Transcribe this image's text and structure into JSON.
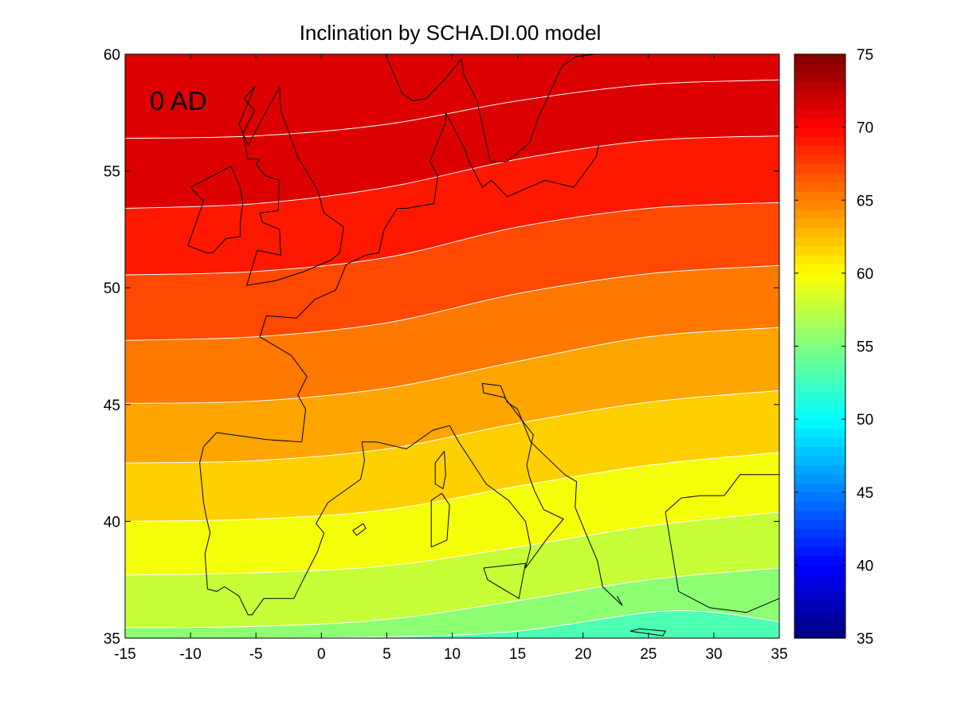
{
  "title": "Inclination by SCHA.DI.00 model",
  "panel_label": "0 AD",
  "x_axis": {
    "min": -15,
    "max": 35,
    "ticks": [
      "-15",
      "-10",
      "-5",
      "0",
      "5",
      "10",
      "15",
      "20",
      "25",
      "30",
      "35"
    ]
  },
  "y_axis": {
    "min": 35,
    "max": 60,
    "ticks": [
      "35",
      "40",
      "45",
      "50",
      "55",
      "60"
    ]
  },
  "colorbar": {
    "min": 35,
    "max": 75,
    "colormap": "jet",
    "ticks": [
      "35",
      "40",
      "45",
      "50",
      "55",
      "60",
      "65",
      "70",
      "75"
    ]
  },
  "chart_data": {
    "type": "heatmap",
    "title": "Inclination by SCHA.DI.00 model",
    "annotation": "0 AD",
    "xlim": [
      -15,
      35
    ],
    "ylim": [
      35,
      60
    ],
    "color_range": [
      35,
      75
    ],
    "contour_color": "#ffffff",
    "band_colors": {
      "54": "#4dffb2",
      "56": "#8cff73",
      "58": "#c6ff38",
      "60": "#f5ff0a",
      "62": "#ffd000",
      "64": "#ffa500",
      "66": "#ff7800",
      "68": "#ff4800",
      "70": "#ff1800",
      "72": "#dd0000"
    },
    "isolines": [
      {
        "level": 72,
        "lon": [
          -15,
          -5,
          5,
          15,
          25,
          35
        ],
        "lat": [
          56.4,
          56.5,
          57.0,
          58.0,
          58.7,
          58.9
        ]
      },
      {
        "level": 70,
        "lon": [
          -15,
          -5,
          5,
          15,
          25,
          35
        ],
        "lat": [
          53.4,
          53.6,
          54.3,
          55.5,
          56.3,
          56.5
        ]
      },
      {
        "level": 68,
        "lon": [
          -15,
          -5,
          5,
          15,
          25,
          35
        ],
        "lat": [
          50.55,
          50.7,
          51.3,
          52.6,
          53.4,
          53.65
        ]
      },
      {
        "level": 66,
        "lon": [
          -15,
          -5,
          5,
          15,
          25,
          35
        ],
        "lat": [
          47.75,
          47.9,
          48.5,
          49.75,
          50.6,
          50.95
        ]
      },
      {
        "level": 64,
        "lon": [
          -15,
          -5,
          5,
          15,
          25,
          35
        ],
        "lat": [
          45.05,
          45.15,
          45.7,
          46.85,
          47.9,
          48.3
        ]
      },
      {
        "level": 62,
        "lon": [
          -15,
          -5,
          5,
          15,
          25,
          35
        ],
        "lat": [
          42.5,
          42.6,
          43.1,
          44.2,
          45.1,
          45.6
        ]
      },
      {
        "level": 60,
        "lon": [
          -15,
          -5,
          5,
          15,
          25,
          35
        ],
        "lat": [
          40.0,
          40.1,
          40.5,
          41.5,
          42.4,
          42.95
        ]
      },
      {
        "level": 58,
        "lon": [
          -15,
          -5,
          5,
          15,
          25,
          35
        ],
        "lat": [
          37.7,
          37.8,
          38.1,
          38.9,
          39.8,
          40.4
        ]
      },
      {
        "level": 56,
        "lon": [
          -15,
          -5,
          5,
          15,
          25,
          35
        ],
        "lat": [
          35.45,
          35.5,
          35.8,
          36.6,
          37.5,
          38.0
        ]
      },
      {
        "level": 54,
        "lon": [
          -6,
          5,
          15,
          25,
          30,
          35
        ],
        "lat": [
          35.0,
          35.05,
          35.3,
          36.1,
          36.1,
          35.7
        ]
      }
    ],
    "coastlines": [
      {
        "name": "iberia-france-italy-balkans-mainland",
        "lon": [
          -9.0,
          -9.3,
          -9.0,
          -8.8,
          -8.5,
          -8.9,
          -8.7,
          -8.0,
          -7.4,
          -6.3,
          -5.6,
          -5.3,
          -4.4,
          -2.1,
          -1.3,
          -0.3,
          0.2,
          -0.4,
          0.5,
          3.0,
          3.3,
          3.1,
          4.2,
          6.5,
          8.5,
          9.8,
          10.5,
          12.6,
          14.3,
          15.6,
          16.0,
          15.6,
          17.3,
          18.5,
          17.0,
          16.3,
          15.9,
          15.7,
          16.2,
          14.0,
          12.4,
          12.3,
          13.7,
          14.2,
          15.0,
          16.0,
          18.6,
          19.5,
          19.4,
          20.2,
          21.1,
          21.5,
          23.0,
          22.6
        ],
        "lat": [
          43.2,
          42.5,
          40.8,
          40.2,
          39.5,
          38.6,
          37.1,
          37.0,
          37.2,
          36.8,
          36.0,
          36.0,
          36.7,
          36.7,
          37.6,
          38.7,
          39.5,
          39.9,
          40.8,
          41.8,
          42.6,
          43.4,
          43.4,
          43.1,
          43.9,
          44.1,
          43.4,
          41.6,
          40.9,
          40.0,
          38.9,
          38.0,
          39.3,
          40.1,
          40.5,
          41.3,
          41.9,
          42.4,
          43.7,
          45.3,
          45.5,
          45.9,
          45.8,
          45.1,
          44.8,
          43.4,
          42.0,
          41.7,
          40.6,
          39.5,
          38.3,
          37.2,
          36.4,
          36.8
        ]
      },
      {
        "name": "atlantic-coast-france-lowlands",
        "lon": [
          -9.0,
          -8.0,
          -4.2,
          -1.5,
          -1.2,
          -1.8,
          -1.1,
          -2.3,
          -4.7,
          -4.2,
          -1.9,
          -0.5,
          1.1,
          1.9,
          3.4,
          4.4,
          4.8,
          5.8,
          6.5,
          8.6,
          8.9,
          8.3,
          9.5,
          9.5,
          11.0,
          11.3,
          12.3,
          13.0,
          14.2,
          17.1,
          19.3,
          21.0,
          21.2
        ],
        "lat": [
          43.2,
          43.8,
          43.5,
          43.4,
          44.8,
          45.4,
          46.2,
          47.1,
          47.9,
          48.8,
          48.7,
          49.5,
          49.9,
          51.0,
          51.4,
          51.5,
          52.5,
          53.4,
          53.4,
          53.6,
          54.8,
          55.4,
          57.1,
          57.5,
          55.9,
          55.4,
          54.3,
          54.6,
          53.9,
          54.6,
          54.3,
          55.6,
          56.1
        ]
      },
      {
        "name": "scandinavia",
        "lon": [
          4.9,
          5.5,
          6.2,
          7.0,
          8.0,
          9.4,
          10.7,
          10.9,
          11.9,
          12.6,
          12.9,
          14.2,
          15.9,
          16.6,
          18.4,
          19.5,
          21.0,
          22.0
        ],
        "lat": [
          60.0,
          59.2,
          58.3,
          58.0,
          58.1,
          58.9,
          59.8,
          59.1,
          58.0,
          56.2,
          55.4,
          55.4,
          56.2,
          57.3,
          59.5,
          59.9,
          60.0,
          60.0
        ]
      },
      {
        "name": "great-britain",
        "lon": [
          -5.1,
          -6.3,
          -5.6,
          -3.2,
          -3.1,
          -1.8,
          -0.3,
          0.2,
          1.7,
          1.4,
          0.8,
          -1.3,
          -3.5,
          -5.7,
          -4.9,
          -3.1,
          -3.2,
          -4.5,
          -4.7,
          -3.3,
          -3.2,
          -4.3,
          -5.0,
          -4.7,
          -5.6,
          -6.0,
          -5.1,
          -5.9,
          -5.1
        ],
        "lat": [
          58.6,
          57.0,
          56.1,
          58.6,
          57.6,
          55.6,
          54.2,
          53.2,
          52.6,
          51.5,
          51.2,
          50.7,
          50.3,
          50.1,
          51.6,
          51.4,
          52.5,
          52.8,
          53.2,
          53.3,
          54.6,
          54.8,
          55.3,
          55.5,
          55.5,
          56.6,
          57.6,
          58.1,
          58.6
        ]
      },
      {
        "name": "ireland",
        "lon": [
          -6.0,
          -6.2,
          -6.9,
          -10.0,
          -9.0,
          -10.2,
          -8.8,
          -8.3,
          -7.3,
          -6.2,
          -6.2,
          -6.0
        ],
        "lat": [
          53.6,
          54.3,
          55.2,
          54.3,
          53.7,
          51.8,
          51.5,
          51.5,
          52.1,
          52.2,
          52.8,
          53.6
        ]
      },
      {
        "name": "corsica",
        "lon": [
          9.4,
          9.5,
          9.3,
          8.7,
          8.7,
          9.4
        ],
        "lat": [
          43.0,
          42.0,
          41.4,
          41.6,
          42.5,
          43.0
        ]
      },
      {
        "name": "sardinia",
        "lon": [
          9.2,
          9.8,
          9.6,
          8.4,
          8.4,
          9.2
        ],
        "lat": [
          41.2,
          40.7,
          39.2,
          38.9,
          40.9,
          41.2
        ]
      },
      {
        "name": "sicily",
        "lon": [
          12.4,
          15.6,
          15.1,
          12.7,
          12.4
        ],
        "lat": [
          38.0,
          38.2,
          36.7,
          37.5,
          38.0
        ]
      },
      {
        "name": "mallorca",
        "lon": [
          2.4,
          3.2,
          3.4,
          2.7,
          2.4
        ],
        "lat": [
          39.6,
          39.9,
          39.7,
          39.4,
          39.6
        ]
      },
      {
        "name": "crete",
        "lon": [
          23.6,
          24.3,
          26.3,
          26.1,
          23.6
        ],
        "lat": [
          35.3,
          35.4,
          35.3,
          35.1,
          35.3
        ]
      },
      {
        "name": "anatolia",
        "lon": [
          26.3,
          27.5,
          29.0,
          30.8,
          32.0,
          35.0,
          35.0,
          32.5,
          29.7,
          27.3,
          26.3
        ],
        "lat": [
          40.4,
          41.0,
          41.1,
          41.1,
          42.0,
          42.0,
          36.7,
          36.1,
          36.3,
          37.0,
          40.4
        ]
      }
    ]
  }
}
